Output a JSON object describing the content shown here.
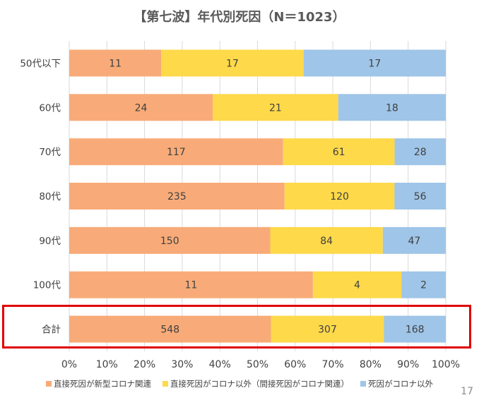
{
  "chart_data": {
    "type": "bar",
    "orientation": "horizontal",
    "stacked": "percent",
    "title": "【第七波】年代別死因（N＝1023）",
    "categories": [
      "50代以下",
      "60代",
      "70代",
      "80代",
      "90代",
      "100代",
      "合計"
    ],
    "series": [
      {
        "name": "直接死因が新型コロナ関連",
        "color": "#f8ab78",
        "values": [
          11,
          24,
          117,
          235,
          150,
          11,
          548
        ]
      },
      {
        "name": "直接死因がコロナ以外（間接死因がコロナ関連）",
        "color": "#fed94a",
        "values": [
          17,
          21,
          61,
          120,
          84,
          4,
          307
        ]
      },
      {
        "name": "死因がコロナ以外",
        "color": "#9fc5e8",
        "values": [
          17,
          18,
          28,
          56,
          47,
          2,
          168
        ]
      }
    ],
    "x_ticks": [
      "0%",
      "10%",
      "20%",
      "30%",
      "40%",
      "50%",
      "60%",
      "70%",
      "80%",
      "90%",
      "100%"
    ],
    "xlim": [
      0,
      100
    ],
    "grid": true,
    "legend_position": "bottom",
    "highlighted_category": "合計"
  },
  "page_number": "17"
}
